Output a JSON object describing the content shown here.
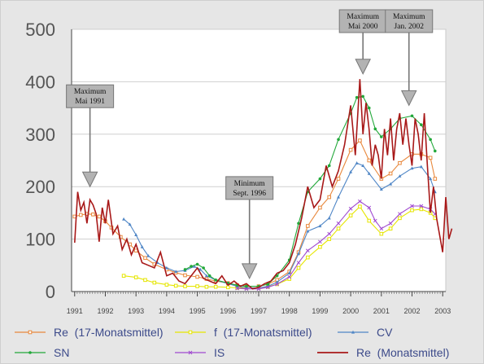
{
  "chart_data": {
    "type": "line",
    "title": "",
    "xlabel": "",
    "ylabel": "",
    "xlim": [
      1990.9,
      2003.1
    ],
    "ylim": [
      0,
      500
    ],
    "yticks": [
      "0",
      "100",
      "200",
      "300",
      "400",
      "500"
    ],
    "xticks": [
      "1991",
      "1992",
      "1993",
      "1994",
      "1995",
      "1996",
      "1997",
      "1998",
      "1999",
      "2000",
      "2001",
      "2002",
      "2003"
    ],
    "grid": true,
    "legend_position": "bottom",
    "series": [
      {
        "name": "Re  (17-Monatsmittel)",
        "color": "#e8883c",
        "marker": "square",
        "x": [
          1991.0,
          1991.2,
          1991.4,
          1991.6,
          1991.8,
          1992.0,
          1992.2,
          1992.5,
          1992.8,
          1993.0,
          1993.3,
          1993.6,
          1994.0,
          1994.3,
          1994.6,
          1995.0,
          1995.3,
          1995.6,
          1996.0,
          1996.3,
          1996.6,
          1997.0,
          1997.3,
          1997.6,
          1998.0,
          1998.3,
          1998.6,
          1999.0,
          1999.3,
          1999.6,
          2000.0,
          2000.3,
          2000.6,
          2001.0,
          2001.3,
          2001.6,
          2002.0,
          2002.3,
          2002.6,
          2002.75
        ],
        "y": [
          143,
          146,
          148,
          147,
          143,
          134,
          122,
          104,
          90,
          78,
          64,
          52,
          42,
          36,
          31,
          28,
          24,
          20,
          16,
          12,
          10,
          10,
          14,
          22,
          38,
          75,
          125,
          160,
          180,
          215,
          270,
          288,
          250,
          215,
          225,
          245,
          262,
          262,
          255,
          215
        ]
      },
      {
        "name": "f  (17-Monatsmittel)",
        "color": "#e6e600",
        "marker": "square",
        "x": [
          1992.6,
          1993.0,
          1993.3,
          1993.6,
          1994.0,
          1994.3,
          1994.6,
          1995.0,
          1995.3,
          1995.6,
          1996.0,
          1996.3,
          1996.6,
          1997.0,
          1997.3,
          1997.6,
          1998.0,
          1998.3,
          1998.6,
          1999.0,
          1999.3,
          1999.6,
          2000.0,
          2000.3,
          2000.6,
          2001.0,
          2001.3,
          2001.6,
          2002.0,
          2002.3,
          2002.6,
          2002.75
        ],
        "y": [
          30,
          27,
          22,
          17,
          13,
          11,
          10,
          10,
          9,
          9,
          8,
          7,
          7,
          7,
          9,
          14,
          24,
          45,
          65,
          85,
          100,
          120,
          145,
          162,
          135,
          110,
          120,
          140,
          155,
          157,
          150,
          140
        ]
      },
      {
        "name": "CV",
        "color": "#4f86c6",
        "marker": "triangle",
        "x": [
          1992.6,
          1992.8,
          1993.0,
          1993.2,
          1993.4,
          1993.7,
          1994.0,
          1994.3,
          1994.6,
          1994.9,
          1995.1,
          1995.3,
          1995.6,
          1996.0,
          1996.3,
          1996.6,
          1997.0,
          1997.3,
          1997.6,
          1998.0,
          1998.3,
          1998.6,
          1999.0,
          1999.3,
          1999.6,
          2000.0,
          2000.2,
          2000.4,
          2000.6,
          2001.0,
          2001.3,
          2001.6,
          2002.0,
          2002.3,
          2002.6,
          2002.75
        ],
        "y": [
          138,
          128,
          108,
          85,
          68,
          55,
          45,
          38,
          40,
          48,
          42,
          30,
          22,
          15,
          10,
          7,
          7,
          10,
          18,
          35,
          72,
          115,
          125,
          140,
          180,
          228,
          245,
          240,
          225,
          195,
          205,
          220,
          235,
          238,
          215,
          190
        ]
      },
      {
        "name": "SN",
        "color": "#22a83a",
        "marker": "circle",
        "x": [
          1994.6,
          1994.8,
          1995.0,
          1995.2,
          1995.4,
          1995.6,
          1996.0,
          1996.3,
          1996.6,
          1997.0,
          1997.3,
          1997.6,
          1998.0,
          1998.3,
          1998.6,
          1999.0,
          1999.3,
          1999.6,
          2000.0,
          2000.2,
          2000.4,
          2000.6,
          2000.8,
          2001.0,
          2001.3,
          2001.6,
          2002.0,
          2002.3,
          2002.6,
          2002.75
        ],
        "y": [
          42,
          48,
          52,
          45,
          30,
          22,
          16,
          12,
          10,
          10,
          14,
          30,
          60,
          130,
          190,
          215,
          240,
          290,
          340,
          370,
          372,
          350,
          310,
          295,
          310,
          330,
          335,
          318,
          290,
          268
        ]
      },
      {
        "name": "IS",
        "color": "#a04ad0",
        "marker": "x",
        "x": [
          1996.3,
          1996.6,
          1997.0,
          1997.3,
          1997.6,
          1998.0,
          1998.3,
          1998.6,
          1999.0,
          1999.3,
          1999.6,
          2000.0,
          2000.3,
          2000.6,
          2000.8,
          2001.0,
          2001.3,
          2001.6,
          2002.0,
          2002.3,
          2002.6,
          2002.75
        ],
        "y": [
          6,
          5,
          5,
          8,
          14,
          28,
          55,
          78,
          95,
          110,
          130,
          158,
          172,
          160,
          135,
          120,
          130,
          148,
          163,
          163,
          157,
          148
        ]
      },
      {
        "name": "Re  (Monatsmittel)",
        "color": "#a81818",
        "marker": "none",
        "x": [
          1991.0,
          1991.1,
          1991.2,
          1991.3,
          1991.4,
          1991.5,
          1991.6,
          1991.7,
          1991.8,
          1991.9,
          1992.0,
          1992.1,
          1992.25,
          1992.4,
          1992.55,
          1992.7,
          1992.85,
          1993.0,
          1993.2,
          1993.4,
          1993.6,
          1993.8,
          1994.0,
          1994.2,
          1994.4,
          1994.6,
          1994.8,
          1995.0,
          1995.2,
          1995.4,
          1995.6,
          1995.8,
          1996.0,
          1996.2,
          1996.4,
          1996.6,
          1996.8,
          1997.0,
          1997.2,
          1997.4,
          1997.6,
          1997.8,
          1998.0,
          1998.2,
          1998.4,
          1998.6,
          1998.8,
          1999.0,
          1999.2,
          1999.4,
          1999.6,
          1999.8,
          2000.0,
          2000.15,
          2000.3,
          2000.4,
          2000.5,
          2000.6,
          2000.7,
          2000.8,
          2000.9,
          2001.0,
          2001.1,
          2001.2,
          2001.3,
          2001.4,
          2001.5,
          2001.6,
          2001.7,
          2001.8,
          2001.9,
          2002.0,
          2002.1,
          2002.2,
          2002.3,
          2002.4,
          2002.5,
          2002.6,
          2002.7,
          2002.8,
          2003.0,
          2003.1,
          2003.2,
          2003.3
        ],
        "y": [
          93,
          190,
          155,
          170,
          130,
          175,
          165,
          148,
          95,
          160,
          130,
          175,
          110,
          125,
          80,
          100,
          70,
          90,
          55,
          50,
          45,
          75,
          30,
          35,
          20,
          15,
          30,
          45,
          25,
          20,
          15,
          30,
          12,
          20,
          10,
          15,
          5,
          8,
          15,
          20,
          35,
          40,
          55,
          90,
          140,
          200,
          160,
          175,
          240,
          200,
          230,
          280,
          355,
          260,
          405,
          300,
          360,
          310,
          240,
          280,
          260,
          215,
          310,
          260,
          330,
          250,
          310,
          340,
          280,
          330,
          280,
          240,
          330,
          300,
          250,
          340,
          240,
          150,
          200,
          140,
          75,
          180,
          100,
          120
        ]
      }
    ],
    "annotations": [
      {
        "lines": [
          "Maximum",
          "Mai 1991"
        ],
        "x": 1991.5,
        "y": 200
      },
      {
        "lines": [
          "Minimum",
          "Sept. 1996"
        ],
        "x": 1996.7,
        "y": 25
      },
      {
        "lines": [
          "Maximum",
          "Mai 2000"
        ],
        "x": 2000.4,
        "y": 415
      },
      {
        "lines": [
          "Maximum",
          "Jan. 2002"
        ],
        "x": 2001.9,
        "y": 355
      }
    ]
  }
}
